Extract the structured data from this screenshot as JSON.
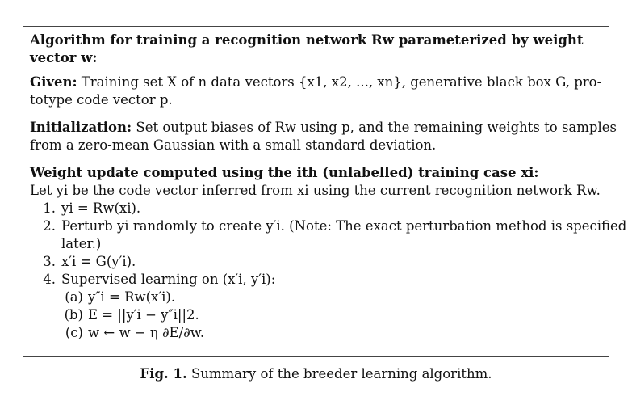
{
  "box": {
    "title_line1": "Algorithm for training a recognition network Rw parameterized by weight",
    "title_line2": "vector w:",
    "given_label": "Given:",
    "given_line1": " Training set X of n data vectors {x1, x2, ..., xn}, generative black box G, pro-",
    "given_line2": "totype code vector p.",
    "init_label": "Initialization:",
    "init_line1": " Set output biases of Rw using p, and the remaining weights to samples",
    "init_line2": "from a zero-mean Gaussian with a small standard deviation.",
    "update_heading": "Weight update computed using the ith (unlabelled) training case xi:",
    "update_intro": "Let yi be the code vector inferred from xi using the current recognition network Rw.",
    "steps": [
      {
        "num": "1.",
        "text": "yi = Rw(xi)."
      },
      {
        "num": "2.",
        "text": "Perturb yi randomly to create y′i. (Note: The exact perturbation method is specified",
        "cont": "later.)"
      },
      {
        "num": "3.",
        "text": "x′i = G(y′i)."
      },
      {
        "num": "4.",
        "text": "Supervised learning on (x′i, y′i):"
      }
    ],
    "substeps": [
      {
        "num": "(a)",
        "text": "y″i = Rw(x′i)."
      },
      {
        "num": "(b)",
        "text": "E = ||y′i − y″i||2."
      },
      {
        "num": "(c)",
        "text": "w ← w − η ∂E/∂w."
      }
    ]
  },
  "caption": {
    "label": "Fig. 1.",
    "text": " Summary of the breeder learning algorithm."
  }
}
